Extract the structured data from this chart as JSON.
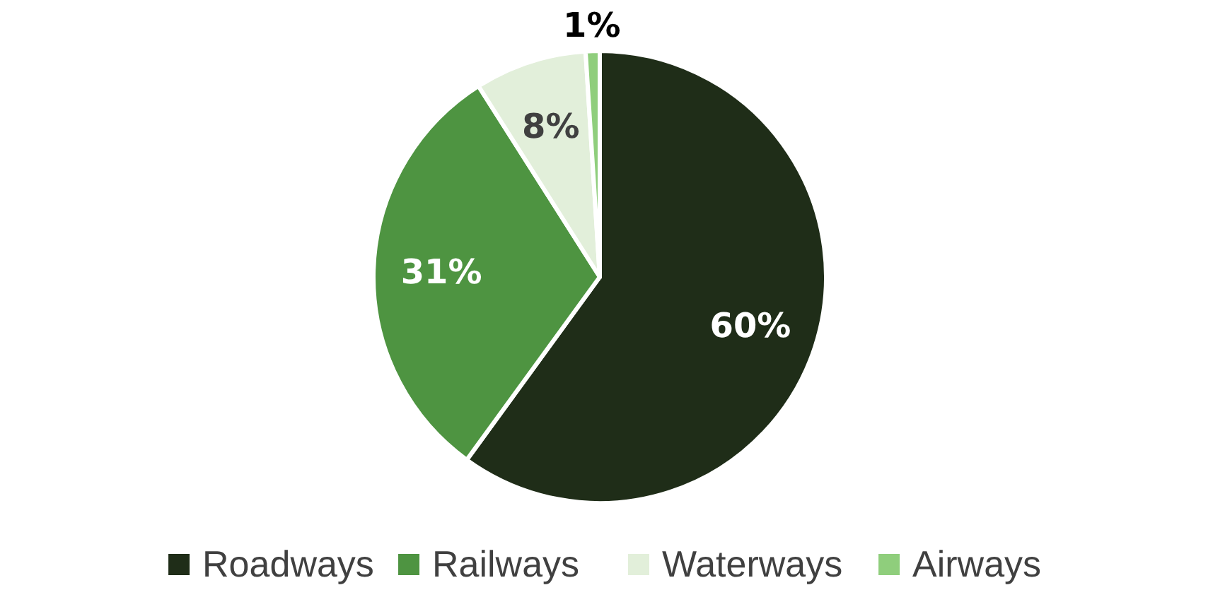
{
  "chart_data": {
    "type": "pie",
    "categories": [
      "Roadways",
      "Railways",
      "Waterways",
      "Airways"
    ],
    "values": [
      60,
      31,
      8,
      1
    ],
    "colors": [
      "#1f2d18",
      "#4e9441",
      "#e2efda",
      "#8fce7c"
    ],
    "value_labels": [
      "60%",
      "31%",
      "8%",
      "1%"
    ],
    "legend": "bottom"
  }
}
